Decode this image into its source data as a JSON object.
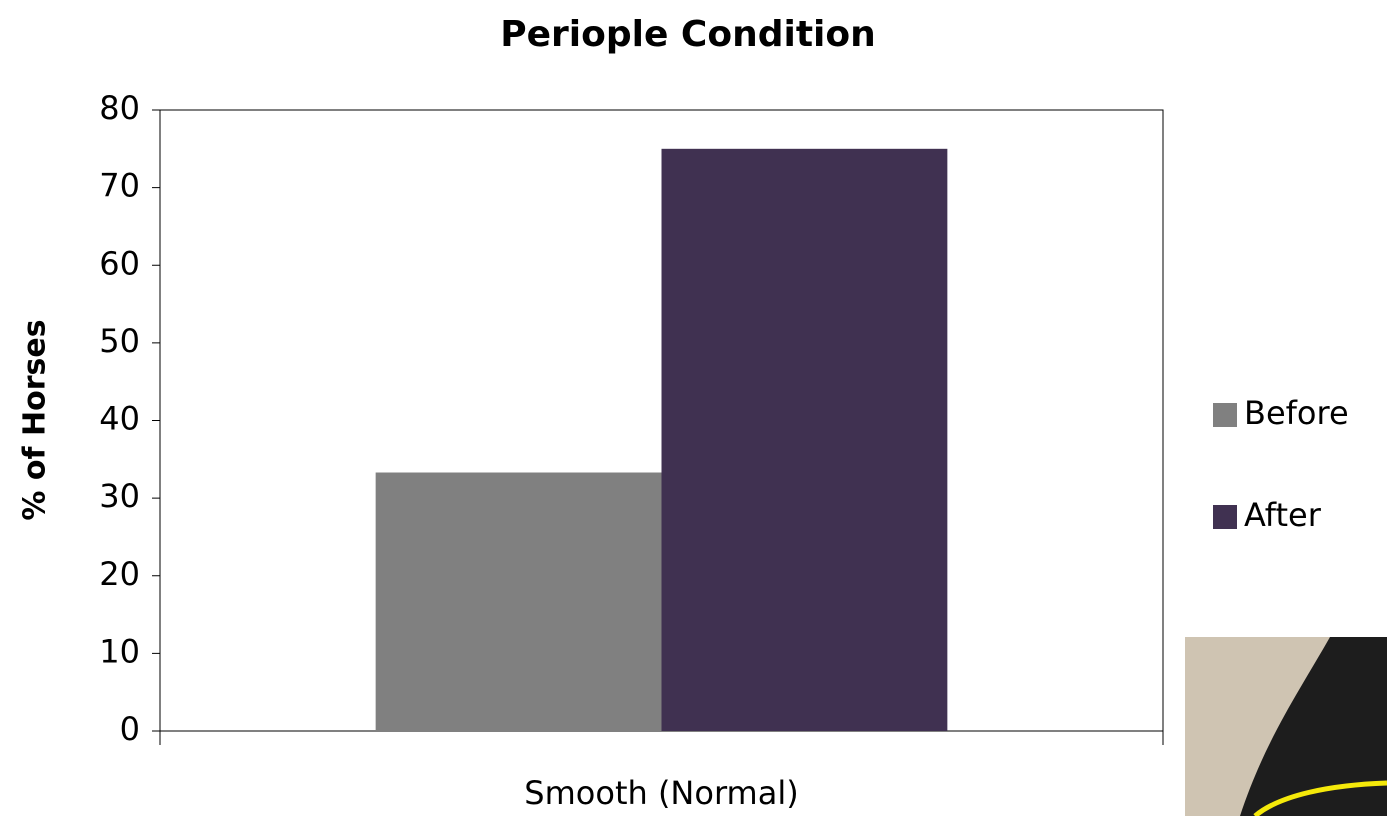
{
  "chart_data": {
    "type": "bar",
    "title": "Periople Condition",
    "y_label": "% of Horses",
    "categories": [
      "Smooth (Normal)"
    ],
    "series": [
      {
        "name": "Before",
        "color": "#808080",
        "values": [
          33.3
        ]
      },
      {
        "name": "After",
        "color": "#403151",
        "values": [
          75
        ]
      }
    ],
    "ylim": [
      0,
      80
    ],
    "yticks": [
      0,
      10,
      20,
      30,
      40,
      50,
      60,
      70,
      80
    ],
    "legend": "right"
  }
}
